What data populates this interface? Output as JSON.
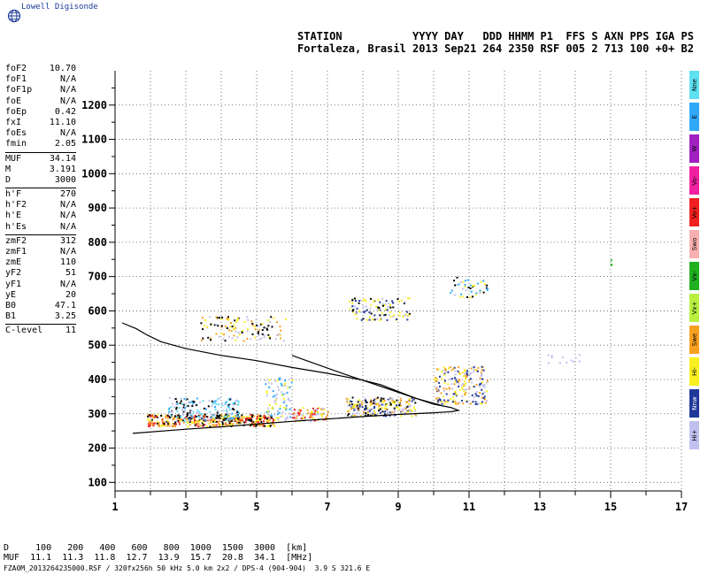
{
  "logo": {
    "text": "Lowell Digisonde",
    "icon": "globe-icon"
  },
  "header": {
    "line1": "STATION           YYYY DAY   DDD HHMM P1  FFS S AXN PPS IGA PS",
    "line2": "Fortaleza, Brasil 2013 Sep21 264 2350 RSF 005 2 713 100 +0+ B2"
  },
  "params": {
    "group1": [
      {
        "name": "foF2",
        "value": "10.70"
      },
      {
        "name": "foF1",
        "value": "N/A"
      },
      {
        "name": "foF1p",
        "value": "N/A"
      },
      {
        "name": "foE",
        "value": "N/A"
      },
      {
        "name": "foEp",
        "value": "0.42"
      },
      {
        "name": "fxI",
        "value": "11.10"
      },
      {
        "name": "foEs",
        "value": "N/A"
      },
      {
        "name": "fmin",
        "value": "2.05"
      }
    ],
    "group2": [
      {
        "name": "MUF",
        "value": "34.14"
      },
      {
        "name": "M",
        "value": "3.191"
      },
      {
        "name": "D",
        "value": "3000"
      }
    ],
    "group3": [
      {
        "name": "h'F",
        "value": "270"
      },
      {
        "name": "h'F2",
        "value": "N/A"
      },
      {
        "name": "h'E",
        "value": "N/A"
      },
      {
        "name": "h'Es",
        "value": "N/A"
      }
    ],
    "group4": [
      {
        "name": "zmF2",
        "value": "312"
      },
      {
        "name": "zmF1",
        "value": "N/A"
      },
      {
        "name": "zmE",
        "value": "110"
      },
      {
        "name": "yF2",
        "value": "51"
      },
      {
        "name": "yF1",
        "value": "N/A"
      },
      {
        "name": "yE",
        "value": "20"
      },
      {
        "name": "B0",
        "value": "47.1"
      },
      {
        "name": "B1",
        "value": "3.25"
      }
    ],
    "group5": [
      {
        "name": "C-level",
        "value": "11"
      }
    ]
  },
  "modes": [
    {
      "label": "Nne",
      "color": "#5ee0f0"
    },
    {
      "label": "E",
      "color": "#30a8f8"
    },
    {
      "label": "W",
      "color": "#a020c0"
    },
    {
      "label": "Vo-",
      "color": "#f020a0"
    },
    {
      "label": "Vo+",
      "color": "#f02020"
    },
    {
      "label": "Swo",
      "color": "#f8b0b0"
    },
    {
      "label": "Vx-",
      "color": "#20b020"
    },
    {
      "label": "Vx+",
      "color": "#b8f040"
    },
    {
      "label": "Swe",
      "color": "#f8a020"
    },
    {
      "label": "Hi-",
      "color": "#f8f020"
    },
    {
      "label": "Nnw",
      "color": "#203898"
    },
    {
      "label": "Hi+",
      "color": "#c0c0f0"
    }
  ],
  "muf_table": {
    "line1": "D     100   200   400   600   800  1000  1500  3000  [km]",
    "line2": "MUF  11.1  11.3  11.8  12.7  13.9  15.7  20.8  34.1  [MHz]"
  },
  "footer": "FZA0M_2013264235000.RSF / 320fx256h 50 kHz 5.0 km 2x2 / DPS-4 (904-904)  3.9 S 321.6 E",
  "chart_data": {
    "type": "scatter",
    "x_ticks": [
      "1",
      "3",
      "5",
      "7",
      "9",
      "11",
      "13",
      "15",
      "17"
    ],
    "y_ticks": [
      "100",
      "200",
      "300",
      "400",
      "500",
      "600",
      "700",
      "800",
      "900",
      "1000",
      "1100",
      "1200"
    ],
    "xlim": [
      1,
      17
    ],
    "ylim": [
      75,
      1300
    ],
    "grid": true,
    "trace_curve": [
      [
        1.5,
        243
      ],
      [
        3,
        255
      ],
      [
        4,
        262
      ],
      [
        5,
        270
      ],
      [
        6,
        278
      ],
      [
        7,
        285
      ],
      [
        8,
        292
      ],
      [
        9,
        298
      ],
      [
        10,
        303
      ],
      [
        10.5,
        306
      ],
      [
        10.7,
        310
      ],
      [
        10.5,
        318
      ],
      [
        10,
        328
      ],
      [
        9.5,
        345
      ],
      [
        9,
        365
      ],
      [
        8.5,
        385
      ],
      [
        8,
        398
      ],
      [
        7,
        418
      ],
      [
        6,
        435
      ],
      [
        5,
        455
      ],
      [
        4,
        470
      ],
      [
        3,
        490
      ],
      [
        2.3,
        510
      ],
      [
        1.9,
        530
      ],
      [
        1.6,
        548
      ],
      [
        1.2,
        565
      ]
    ],
    "trace_curve_upper": [
      [
        6,
        470
      ],
      [
        7.5,
        415
      ],
      [
        8.5,
        380
      ],
      [
        9.5,
        345
      ],
      [
        10.2,
        325
      ]
    ],
    "echo_clusters": [
      {
        "x": [
          1.9,
          5.5
        ],
        "y": [
          265,
          300
        ],
        "n": 420,
        "colors": [
          "#f8f020",
          "#f8a020",
          "#f02020",
          "#000000"
        ]
      },
      {
        "x": [
          2.5,
          4.5
        ],
        "y": [
          280,
          350
        ],
        "n": 180,
        "colors": [
          "#5ee0f0",
          "#30a8f8",
          "#000000",
          "#c0c0f0"
        ]
      },
      {
        "x": [
          5.2,
          6.0
        ],
        "y": [
          280,
          410
        ],
        "n": 90,
        "colors": [
          "#c0c0f0",
          "#f8f020",
          "#30a8f8"
        ]
      },
      {
        "x": [
          6.0,
          7.0
        ],
        "y": [
          280,
          320
        ],
        "n": 90,
        "colors": [
          "#f8f020",
          "#f8a020",
          "#f02020",
          "#c0c0f0"
        ]
      },
      {
        "x": [
          7.5,
          9.5
        ],
        "y": [
          295,
          350
        ],
        "n": 240,
        "colors": [
          "#f8f020",
          "#f8a020",
          "#203898",
          "#000000",
          "#c0c0f0"
        ]
      },
      {
        "x": [
          10.0,
          11.5
        ],
        "y": [
          330,
          440
        ],
        "n": 200,
        "colors": [
          "#f8f020",
          "#f8a020",
          "#c0c0f0",
          "#203898"
        ]
      },
      {
        "x": [
          3.4,
          5.8
        ],
        "y": [
          515,
          585
        ],
        "n": 120,
        "colors": [
          "#f8f020",
          "#f8a020",
          "#000000",
          "#c0c0f0"
        ]
      },
      {
        "x": [
          7.6,
          9.3
        ],
        "y": [
          575,
          640
        ],
        "n": 110,
        "colors": [
          "#000000",
          "#c0c0f0",
          "#f8f020",
          "#203898"
        ]
      },
      {
        "x": [
          10.4,
          11.5
        ],
        "y": [
          640,
          700
        ],
        "n": 45,
        "colors": [
          "#000000",
          "#c0c0f0",
          "#30a8f8",
          "#f8f020"
        ]
      },
      {
        "x": [
          13.2,
          14.1
        ],
        "y": [
          450,
          475
        ],
        "n": 12,
        "colors": [
          "#c0c0f0"
        ]
      },
      {
        "x": [
          14.98,
          15.02
        ],
        "y": [
          735,
          750
        ],
        "n": 4,
        "colors": [
          "#20b020"
        ]
      }
    ]
  }
}
